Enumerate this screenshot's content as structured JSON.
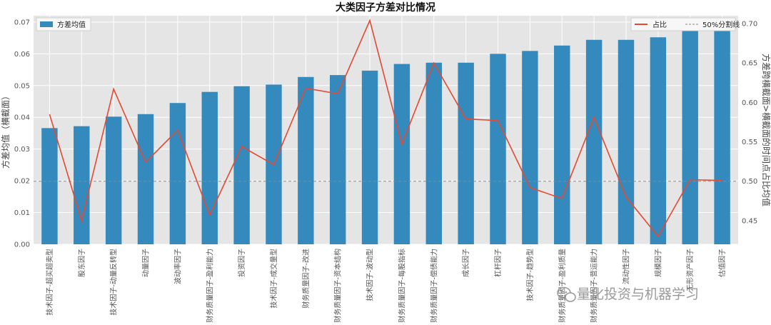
{
  "chart_data": {
    "type": "bar",
    "title": "大类因子方差对比情况",
    "ylabel": "方差均值（横截面）",
    "y2label": "方差跨横截面>横截面的时间点占比均值",
    "ylim": [
      0,
      0.072
    ],
    "y2lim": [
      0.42,
      0.71
    ],
    "yticks": [
      0.0,
      0.01,
      0.02,
      0.03,
      0.04,
      0.05,
      0.06,
      0.07
    ],
    "y2ticks": [
      0.45,
      0.5,
      0.55,
      0.6,
      0.65,
      0.7
    ],
    "grid": true,
    "categories": [
      "技术因子-超买超卖型",
      "股东因子",
      "技术因子-动量反转型",
      "动量因子",
      "波动率因子",
      "财务质量因子-盈利能力",
      "投资因子",
      "技术因子-成交量型",
      "财务质量因子-改进",
      "财务质量因子-资本结构",
      "技术因子-波动型",
      "财务质量因子-每股指标",
      "财务质量因子-偿债能力",
      "成长因子",
      "杠杆因子",
      "技术因子-趋势型",
      "财务质量因子-盈利质量",
      "财务质量因子-营运能力",
      "流动性因子",
      "规模因子",
      "无形资产因子",
      "估值因子"
    ],
    "series": [
      {
        "name": "方差均值",
        "axis": "left",
        "kind": "bar",
        "color": "#348ABD",
        "values": [
          0.0366,
          0.0372,
          0.0402,
          0.041,
          0.0445,
          0.048,
          0.0498,
          0.0503,
          0.0527,
          0.0533,
          0.0547,
          0.0568,
          0.0572,
          0.0572,
          0.06,
          0.0609,
          0.0626,
          0.0644,
          0.0644,
          0.0652,
          0.0678,
          0.0678
        ]
      },
      {
        "name": "占比",
        "axis": "right",
        "kind": "line",
        "color": "#E24A33",
        "values": [
          0.585,
          0.45,
          0.617,
          0.524,
          0.565,
          0.457,
          0.544,
          0.521,
          0.618,
          0.611,
          0.704,
          0.547,
          0.65,
          0.579,
          0.577,
          0.492,
          0.478,
          0.581,
          0.48,
          0.43,
          0.502,
          0.501
        ]
      }
    ],
    "reference_line": {
      "name": "50%分割线",
      "axis": "right",
      "value": 0.5,
      "color": "#888888"
    },
    "legend_left": "top-left",
    "legend_right": "top-right"
  },
  "legend": {
    "bar_label": "方差均值",
    "line_label": "占比",
    "ref_label": "50%分割线"
  },
  "watermark": {
    "text": "量化投资与机器学习"
  },
  "colors": {
    "plot_bg": "#E5E5E5",
    "grid": "#FFFFFF",
    "bar": "#348ABD",
    "line": "#E24A33"
  }
}
